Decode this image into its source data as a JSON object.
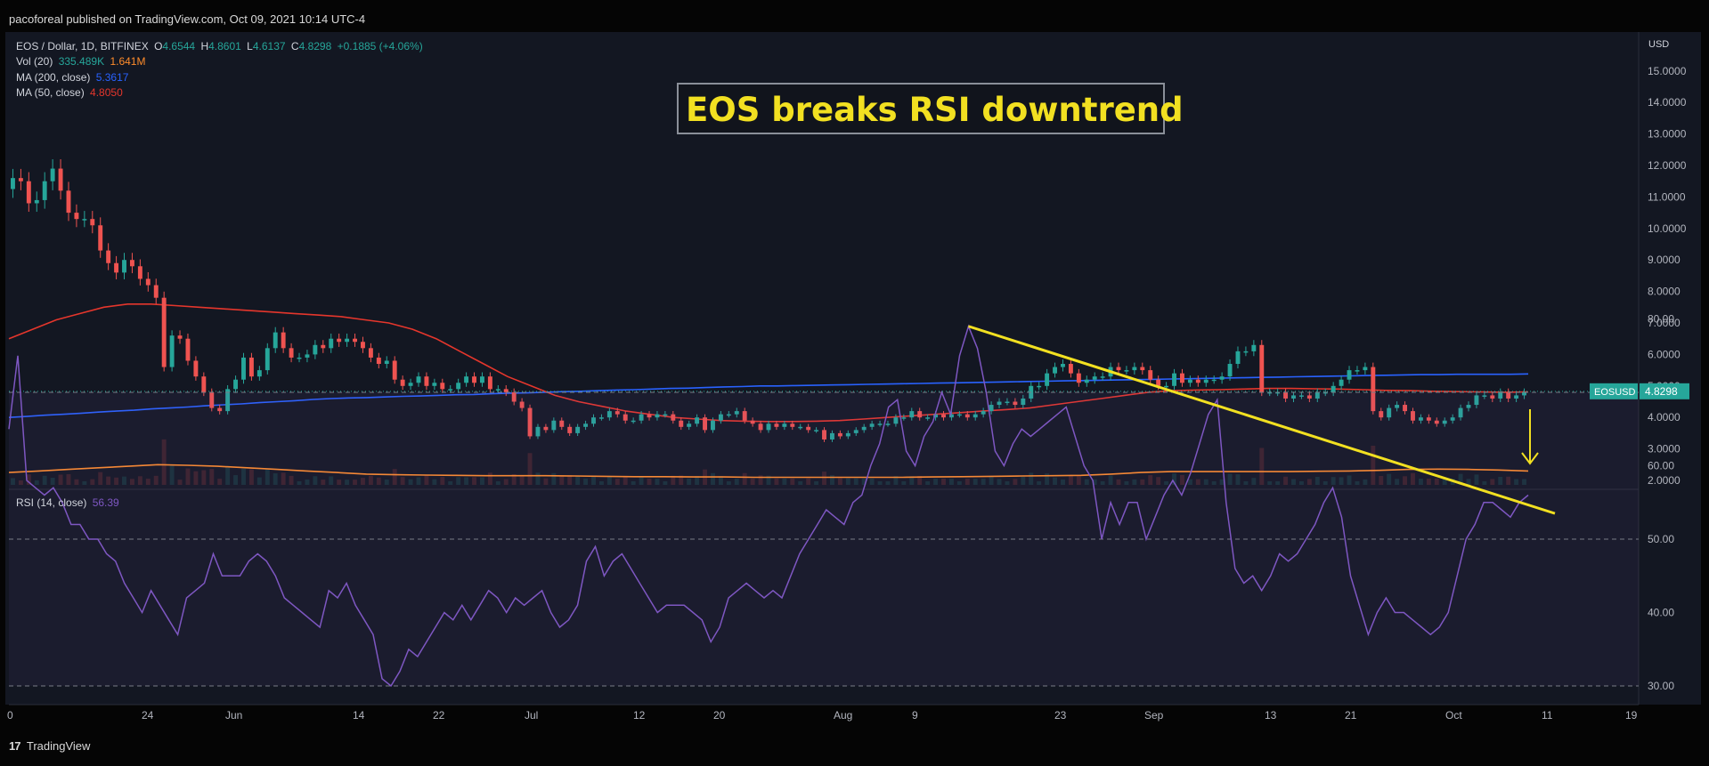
{
  "publisher_line": "pacoforeal published on TradingView.com, Oct 09, 2021 10:14 UTC-4",
  "footer_brand": "TradingView",
  "logo_text": "17",
  "title_box": "EOS breaks RSI downtrend",
  "legend": {
    "symbol": "EOS / Dollar, 1D, BITFINEX",
    "o_label": "O",
    "o": "4.6544",
    "h_label": "H",
    "h": "4.8601",
    "l_label": "L",
    "l": "4.6137",
    "c_label": "C",
    "c": "4.8298",
    "change": "+0.1885 (+4.06%)",
    "vol_label": "Vol (20)",
    "vol_value": "335.489K",
    "vol_ma": "1.641M",
    "ma200_label": "MA (200, close)",
    "ma200_value": "5.3617",
    "ma50_label": "MA (50, close)",
    "ma50_value": "4.8050",
    "rsi_label": "RSI (14, close)",
    "rsi_value": "56.39"
  },
  "colors": {
    "up": "#26a69a",
    "down": "#ef5350",
    "ma200": "#2962ff",
    "ma50": "#e5362c",
    "vol_ma": "#ff8c2b",
    "rsi": "#7e57c2",
    "annotation": "#f2e021",
    "price_tag": "#26a69a"
  },
  "chart_data": [
    {
      "type": "candlestick",
      "symbol": "EOS / Dollar",
      "timeframe": "1D",
      "exchange": "BITFINEX",
      "price_tag_label": "EOSUSD",
      "price_tag_value": "4.8298",
      "currency_label": "USD",
      "price_axis_ticks": [
        "15.0000",
        "14.0000",
        "13.0000",
        "12.0000",
        "11.0000",
        "10.0000",
        "9.0000",
        "8.0000",
        "7.0000",
        "6.0000",
        "5.0000",
        "4.0000",
        "3.0000",
        "2.0000"
      ],
      "x_tick_labels": [
        "0",
        "24",
        "Jun",
        "14",
        "22",
        "Jul",
        "12",
        "20",
        "Aug",
        "9",
        "23",
        "Sep",
        "13",
        "21",
        "Oct",
        "11",
        "19"
      ],
      "ylim": [
        2,
        15
      ],
      "close": [
        11.6,
        11.5,
        10.8,
        10.9,
        11.5,
        11.9,
        11.2,
        10.5,
        10.3,
        10.3,
        10.1,
        9.3,
        8.9,
        8.6,
        9.0,
        8.8,
        8.4,
        8.2,
        7.8,
        5.6,
        6.6,
        6.5,
        5.8,
        5.3,
        4.8,
        4.3,
        4.2,
        4.9,
        5.2,
        5.9,
        5.3,
        5.5,
        6.2,
        6.7,
        6.2,
        5.9,
        5.9,
        6.0,
        6.3,
        6.2,
        6.5,
        6.4,
        6.5,
        6.4,
        6.2,
        5.9,
        5.7,
        5.8,
        5.2,
        5.0,
        5.1,
        5.3,
        5.0,
        5.1,
        4.9,
        4.9,
        5.1,
        5.3,
        5.1,
        5.3,
        4.9,
        4.9,
        4.8,
        4.5,
        4.3,
        3.4,
        3.7,
        3.6,
        3.9,
        3.7,
        3.5,
        3.7,
        3.8,
        4.0,
        4.0,
        4.2,
        4.1,
        3.9,
        3.9,
        4.1,
        4.0,
        4.1,
        4.1,
        3.9,
        3.7,
        3.8,
        4.0,
        3.6,
        3.9,
        4.1,
        4.1,
        4.2,
        3.9,
        3.8,
        3.6,
        3.8,
        3.7,
        3.8,
        3.7,
        3.7,
        3.6,
        3.6,
        3.3,
        3.5,
        3.4,
        3.5,
        3.6,
        3.7,
        3.8,
        3.8,
        3.8,
        4.0,
        4.0,
        4.2,
        4.0,
        4.0,
        4.1,
        4.0,
        4.1,
        4.1,
        4.0,
        4.1,
        4.2,
        4.4,
        4.5,
        4.5,
        4.4,
        4.6,
        5.0,
        5.0,
        5.4,
        5.6,
        5.7,
        5.4,
        5.1,
        5.2,
        5.3,
        5.3,
        5.6,
        5.5,
        5.5,
        5.6,
        5.5,
        5.2,
        5.0,
        5.0,
        5.4,
        5.1,
        5.2,
        5.1,
        5.2,
        5.2,
        5.3,
        5.7,
        6.1,
        6.1,
        6.3,
        4.8,
        4.8,
        4.8,
        4.6,
        4.7,
        4.7,
        4.6,
        4.8,
        4.8,
        5.0,
        5.2,
        5.5,
        5.5,
        5.6,
        4.2,
        4.0,
        4.3,
        4.4,
        4.2,
        3.9,
        4.0,
        3.9,
        3.8,
        3.9,
        4.0,
        4.3,
        4.4,
        4.7,
        4.7,
        4.6,
        4.8,
        4.6,
        4.7,
        4.8
      ],
      "ma200": [
        4.0,
        4.03,
        4.07,
        4.1,
        4.13,
        4.17,
        4.2,
        4.23,
        4.27,
        4.3,
        4.33,
        4.37,
        4.4,
        4.43,
        4.47,
        4.5,
        4.53,
        4.57,
        4.6,
        4.62,
        4.63,
        4.65,
        4.67,
        4.68,
        4.7,
        4.72,
        4.73,
        4.75,
        4.77,
        4.78,
        4.8,
        4.82,
        4.83,
        4.85,
        4.87,
        4.88,
        4.9,
        4.92,
        4.93,
        4.95,
        4.97,
        4.98,
        5.0,
        5.0,
        5.01,
        5.02,
        5.03,
        5.04,
        5.05,
        5.06,
        5.07,
        5.08,
        5.09,
        5.1,
        5.11,
        5.12,
        5.13,
        5.14,
        5.15,
        5.16,
        5.17,
        5.18,
        5.19,
        5.2,
        5.21,
        5.22,
        5.23,
        5.24,
        5.25,
        5.26,
        5.27,
        5.28,
        5.29,
        5.3,
        5.31,
        5.32,
        5.33,
        5.34,
        5.35,
        5.36,
        5.36,
        5.37,
        5.37,
        5.37,
        5.37,
        5.38
      ],
      "ma50": [
        6.5,
        6.8,
        7.1,
        7.3,
        7.5,
        7.6,
        7.6,
        7.55,
        7.5,
        7.45,
        7.4,
        7.35,
        7.3,
        7.25,
        7.2,
        7.1,
        7.0,
        6.8,
        6.5,
        6.1,
        5.7,
        5.3,
        5.0,
        4.7,
        4.5,
        4.35,
        4.2,
        4.1,
        4.0,
        3.95,
        3.9,
        3.88,
        3.87,
        3.87,
        3.88,
        3.9,
        3.95,
        4.0,
        4.05,
        4.1,
        4.15,
        4.2,
        4.25,
        4.3,
        4.4,
        4.5,
        4.6,
        4.7,
        4.8,
        4.85,
        4.87,
        4.88,
        4.9,
        4.92,
        4.92,
        4.91,
        4.9,
        4.88,
        4.86,
        4.85,
        4.83,
        4.82,
        4.81,
        4.8,
        4.81
      ],
      "volume_ma": [
        2.25,
        2.3,
        2.35,
        2.4,
        2.45,
        2.5,
        2.48,
        2.45,
        2.4,
        2.35,
        2.3,
        2.25,
        2.2,
        2.18,
        2.17,
        2.16,
        2.15,
        2.15,
        2.15,
        2.14,
        2.13,
        2.12,
        2.12,
        2.11,
        2.11,
        2.1,
        2.1,
        2.1,
        2.1,
        2.1,
        2.1,
        2.11,
        2.12,
        2.13,
        2.14,
        2.15,
        2.16,
        2.2,
        2.25,
        2.28,
        2.28,
        2.28,
        2.28,
        2.28,
        2.29,
        2.3,
        2.32,
        2.35,
        2.36,
        2.35,
        2.33,
        2.3
      ]
    },
    {
      "type": "line",
      "name": "RSI (14, close)",
      "y_ticks": [
        "80.00",
        "70.00",
        "60.00",
        "50.00",
        "40.00",
        "30.00"
      ],
      "ylim": [
        27,
        82
      ],
      "guides": [
        70,
        50,
        30
      ],
      "values": [
        65,
        75,
        58,
        57,
        56,
        57,
        55,
        52,
        52,
        50,
        50,
        48,
        47,
        44,
        42,
        40,
        43,
        41,
        39,
        37,
        42,
        43,
        44,
        48,
        45,
        45,
        45,
        47,
        48,
        47,
        45,
        42,
        41,
        40,
        39,
        38,
        43,
        42,
        44,
        41,
        39,
        37,
        31,
        30,
        32,
        35,
        34,
        36,
        38,
        40,
        39,
        41,
        39,
        41,
        43,
        42,
        40,
        42,
        41,
        42,
        43,
        40,
        38,
        39,
        41,
        47,
        49,
        45,
        47,
        48,
        46,
        44,
        42,
        40,
        41,
        41,
        41,
        40,
        39,
        36,
        38,
        42,
        43,
        44,
        43,
        42,
        43,
        42,
        45,
        48,
        50,
        52,
        54,
        53,
        52,
        55,
        56,
        60,
        63,
        68,
        69,
        62,
        60,
        64,
        66,
        70,
        67,
        75,
        79,
        76,
        70,
        62,
        60,
        63,
        65,
        64,
        65,
        66,
        67,
        68,
        64,
        60,
        58,
        50,
        55,
        52,
        55,
        55,
        50,
        53,
        56,
        58,
        56,
        59,
        63,
        67,
        69,
        55,
        46,
        44,
        45,
        43,
        45,
        48,
        47,
        48,
        50,
        52,
        55,
        57,
        53,
        45,
        41,
        37,
        40,
        42,
        40,
        40,
        39,
        38,
        37,
        38,
        40,
        45,
        50,
        52,
        55,
        55,
        54,
        53,
        55,
        56
      ],
      "trendline_from": {
        "x": 108,
        "y": 79
      },
      "trendline_to": {
        "x": 172,
        "y": 53.5
      }
    }
  ]
}
